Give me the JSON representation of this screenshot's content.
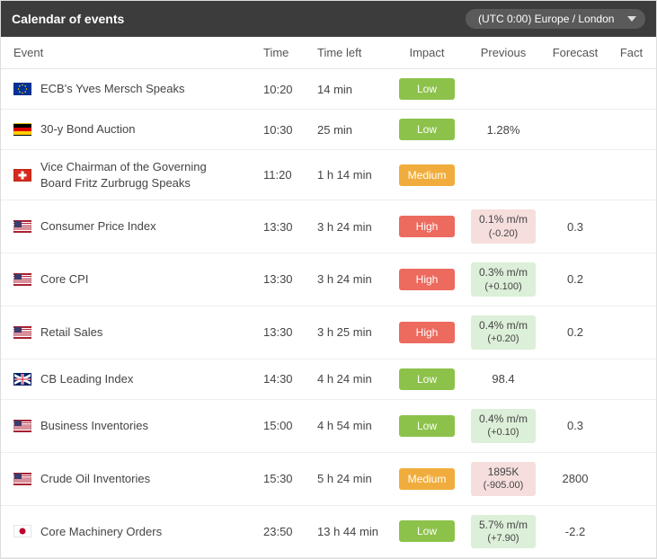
{
  "header": {
    "title": "Calendar of events",
    "timezone": "(UTC 0:00) Europe / London"
  },
  "columns": {
    "event": "Event",
    "time": "Time",
    "timeleft": "Time left",
    "impact": "Impact",
    "previous": "Previous",
    "forecast": "Forecast",
    "fact": "Fact"
  },
  "impact_colors": {
    "Low": "#8cc24a",
    "Medium": "#f0ad3d",
    "High": "#ec6a5e"
  },
  "prev_colors": {
    "up_bg": "#dcefd8",
    "down_bg": "#f6dedd"
  },
  "rows": [
    {
      "flag": "eu",
      "event": "ECB's Yves Mersch Speaks",
      "time": "10:20",
      "timeleft": "14 min",
      "impact": "Low",
      "previous": null,
      "forecast": "",
      "fact": ""
    },
    {
      "flag": "de",
      "event": "30-y Bond Auction",
      "time": "10:30",
      "timeleft": "25 min",
      "impact": "Low",
      "previous": {
        "main": "1.28%",
        "delta": "",
        "dir": ""
      },
      "forecast": "",
      "fact": ""
    },
    {
      "flag": "ch",
      "event": "Vice Chairman of the Governing Board Fritz Zurbrugg Speaks",
      "time": "11:20",
      "timeleft": "1 h 14 min",
      "impact": "Medium",
      "previous": null,
      "forecast": "",
      "fact": ""
    },
    {
      "flag": "us",
      "event": "Consumer Price Index",
      "time": "13:30",
      "timeleft": "3 h 24 min",
      "impact": "High",
      "previous": {
        "main": "0.1% m/m",
        "delta": "(-0.20)",
        "dir": "down"
      },
      "forecast": "0.3",
      "fact": ""
    },
    {
      "flag": "us",
      "event": "Core CPI",
      "time": "13:30",
      "timeleft": "3 h 24 min",
      "impact": "High",
      "previous": {
        "main": "0.3% m/m",
        "delta": "(+0.100)",
        "dir": "up"
      },
      "forecast": "0.2",
      "fact": ""
    },
    {
      "flag": "us",
      "event": "Retail Sales",
      "time": "13:30",
      "timeleft": "3 h 25 min",
      "impact": "High",
      "previous": {
        "main": "0.4% m/m",
        "delta": "(+0.20)",
        "dir": "up"
      },
      "forecast": "0.2",
      "fact": ""
    },
    {
      "flag": "gb",
      "event": "CB Leading Index",
      "time": "14:30",
      "timeleft": "4 h 24 min",
      "impact": "Low",
      "previous": {
        "main": "98.4",
        "delta": "",
        "dir": ""
      },
      "forecast": "",
      "fact": ""
    },
    {
      "flag": "us",
      "event": "Business Inventories",
      "time": "15:00",
      "timeleft": "4 h 54 min",
      "impact": "Low",
      "previous": {
        "main": "0.4% m/m",
        "delta": "(+0.10)",
        "dir": "up"
      },
      "forecast": "0.3",
      "fact": ""
    },
    {
      "flag": "us",
      "event": "Crude Oil Inventories",
      "time": "15:30",
      "timeleft": "5 h 24 min",
      "impact": "Medium",
      "previous": {
        "main": "1895K",
        "delta": "(-905.00)",
        "dir": "down"
      },
      "forecast": "2800",
      "fact": ""
    },
    {
      "flag": "jp",
      "event": "Core Machinery Orders",
      "time": "23:50",
      "timeleft": "13 h 44 min",
      "impact": "Low",
      "previous": {
        "main": "5.7% m/m",
        "delta": "(+7.90)",
        "dir": "up"
      },
      "forecast": "-2.2",
      "fact": ""
    }
  ]
}
